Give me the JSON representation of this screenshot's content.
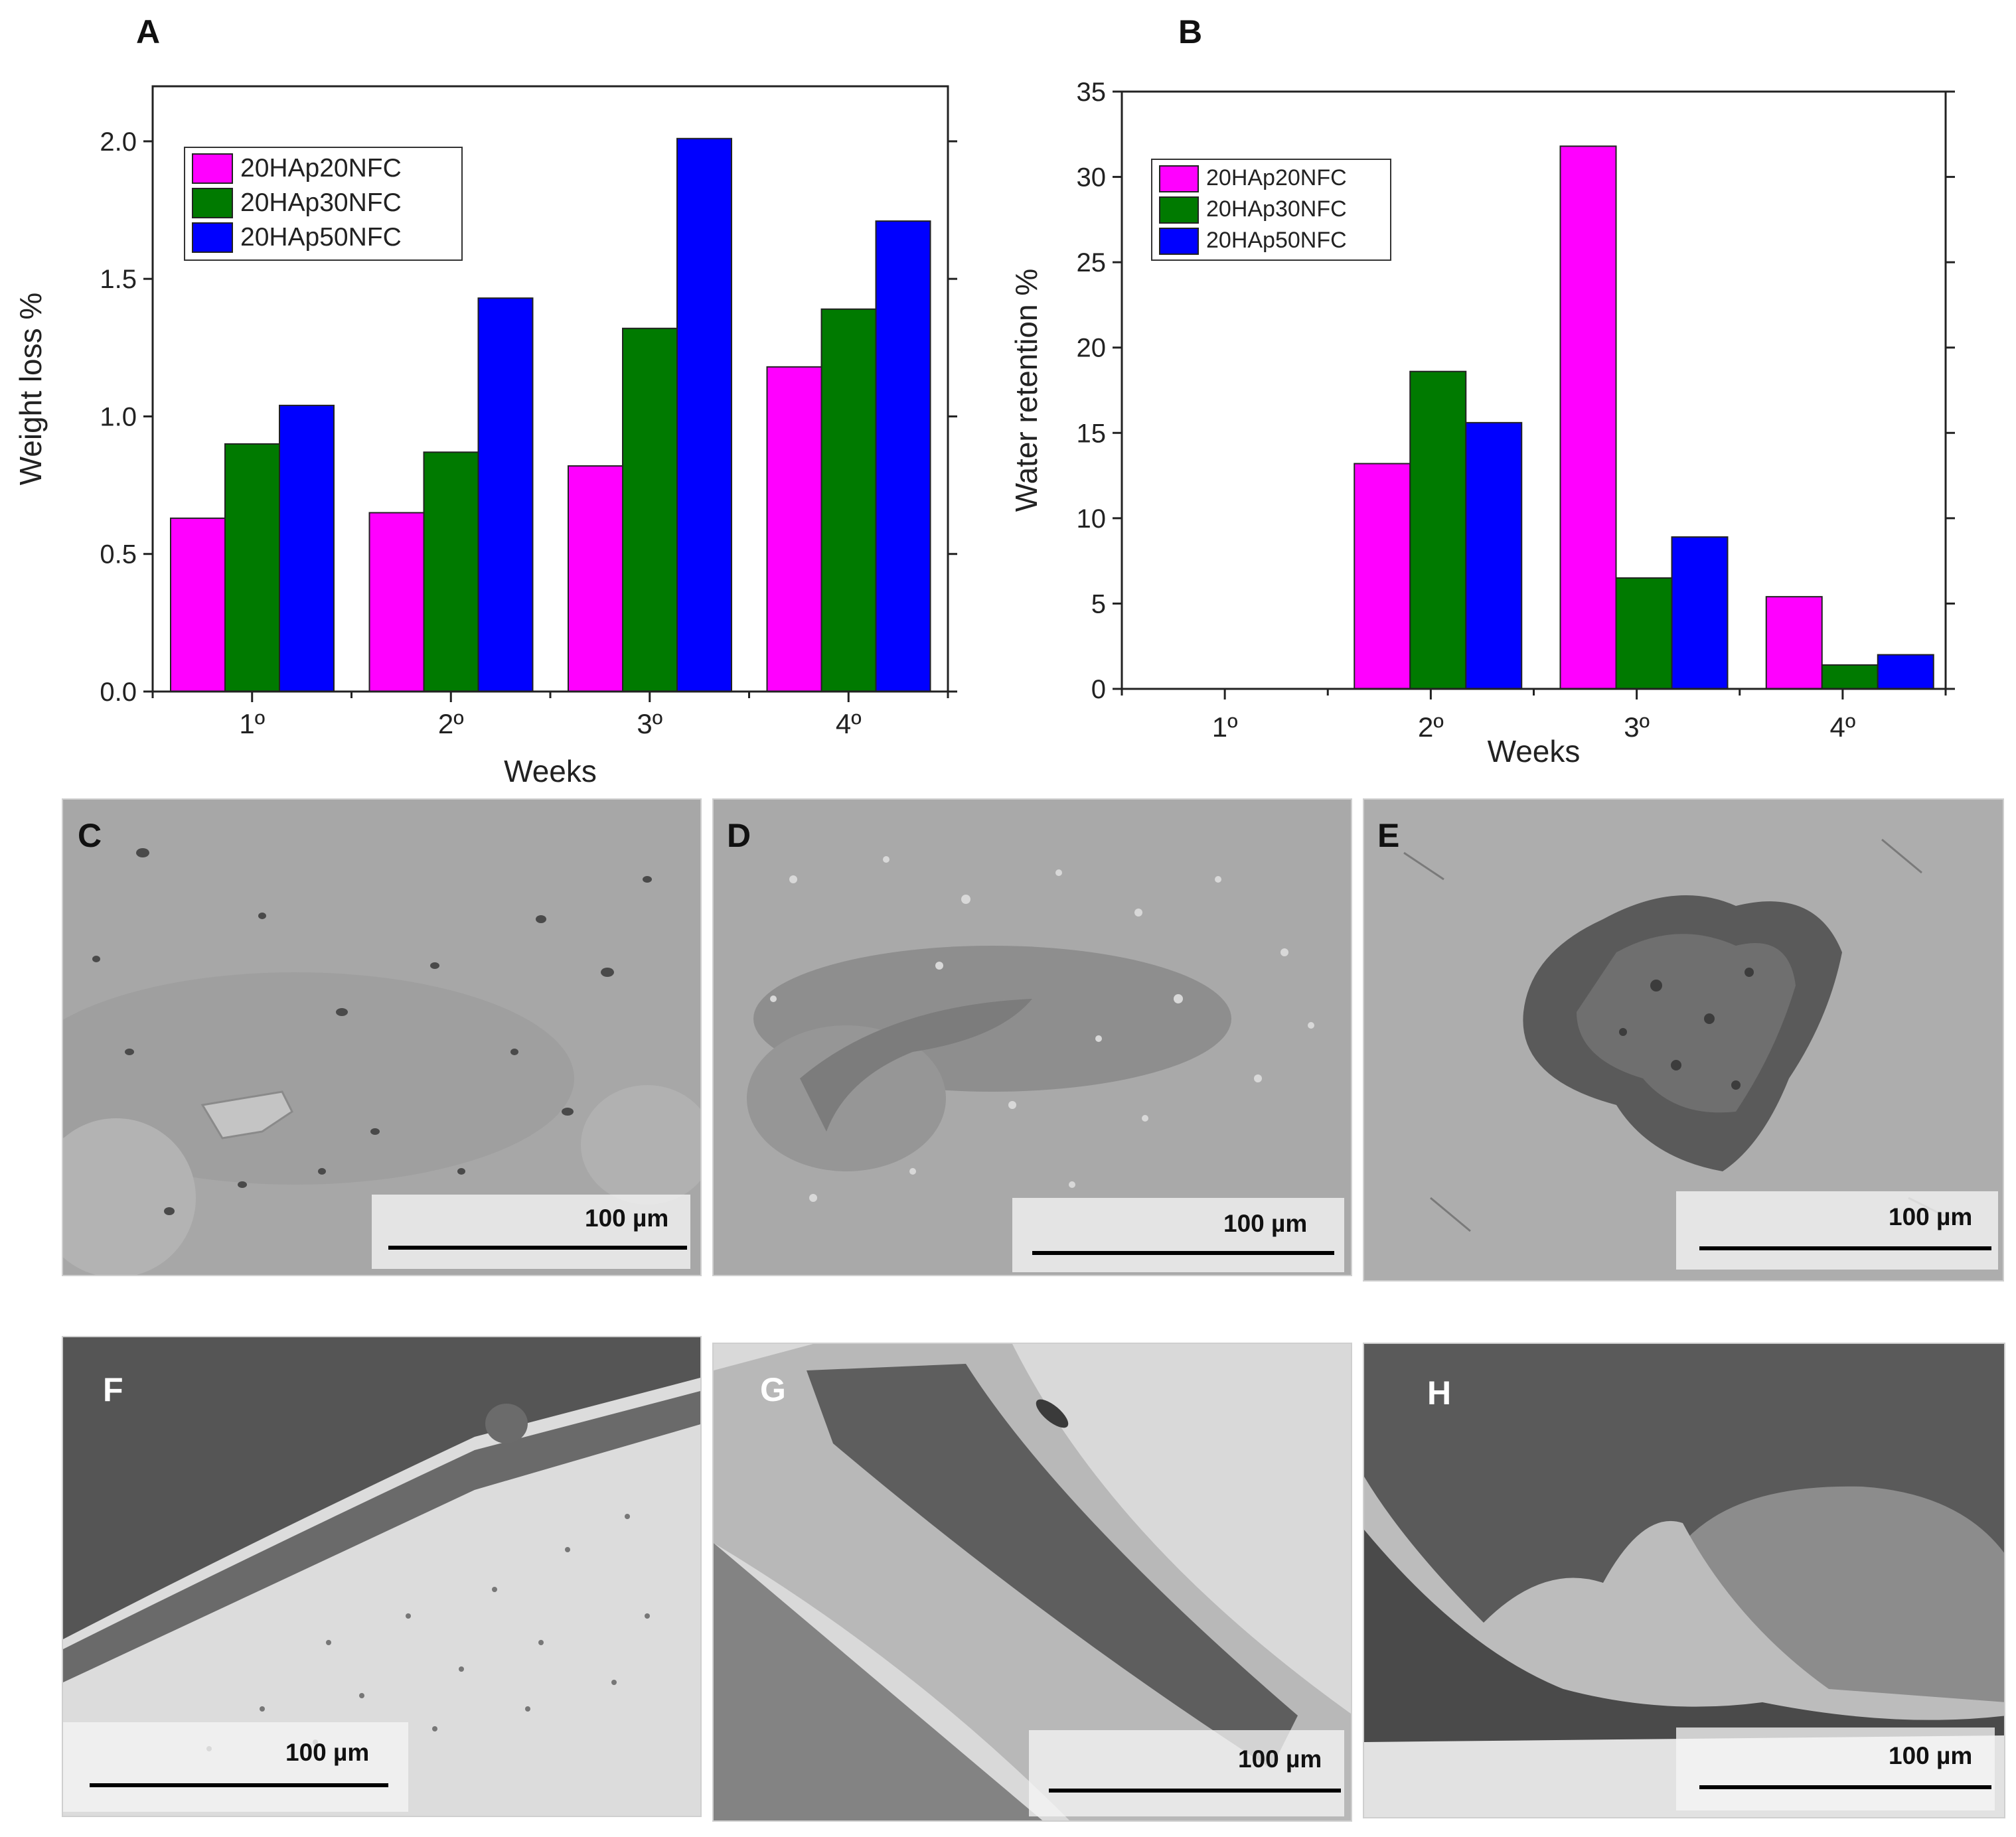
{
  "chart_data": [
    {
      "panel_label": "A",
      "type": "bar",
      "xlabel": "Weeks",
      "ylabel": "Weight loss %",
      "categories": [
        "1º",
        "2º",
        "3º",
        "4º"
      ],
      "ylim": [
        0,
        2.2
      ],
      "yticks": [
        "0.0",
        "0.5",
        "1.0",
        "1.5",
        "2.0"
      ],
      "legend_position": "top-left",
      "series": [
        {
          "name": "20HAp20NFC",
          "color": "#ff00ff",
          "values": [
            0.63,
            0.65,
            0.82,
            1.18
          ]
        },
        {
          "name": "20HAp30NFC",
          "color": "#007a00",
          "values": [
            0.9,
            0.87,
            1.32,
            1.39
          ]
        },
        {
          "name": "20HAp50NFC",
          "color": "#0000ff",
          "values": [
            1.04,
            1.43,
            2.01,
            1.71
          ]
        }
      ]
    },
    {
      "panel_label": "B",
      "type": "bar",
      "xlabel": "Weeks",
      "ylabel": "Water retention %",
      "categories": [
        "1º",
        "2º",
        "3º",
        "4º"
      ],
      "ylim": [
        0,
        35
      ],
      "yticks": [
        "0",
        "5",
        "10",
        "15",
        "20",
        "25",
        "30",
        "35"
      ],
      "legend_position": "top-left",
      "series": [
        {
          "name": "20HAp20NFC",
          "color": "#ff00ff",
          "values": [
            0,
            13.2,
            31.8,
            5.4
          ]
        },
        {
          "name": "20HAp30NFC",
          "color": "#007a00",
          "values": [
            0,
            18.6,
            6.5,
            1.4
          ]
        },
        {
          "name": "20HAp50NFC",
          "color": "#0000ff",
          "values": [
            0,
            15.6,
            8.9,
            2.0
          ]
        }
      ]
    }
  ],
  "micrographs": [
    {
      "label": "C",
      "scale_text": "100 µm"
    },
    {
      "label": "D",
      "scale_text": "100 µm"
    },
    {
      "label": "E",
      "scale_text": "100 µm"
    },
    {
      "label": "F",
      "scale_text": "100 µm"
    },
    {
      "label": "G",
      "scale_text": "100 µm"
    },
    {
      "label": "H",
      "scale_text": "100 µm"
    }
  ]
}
